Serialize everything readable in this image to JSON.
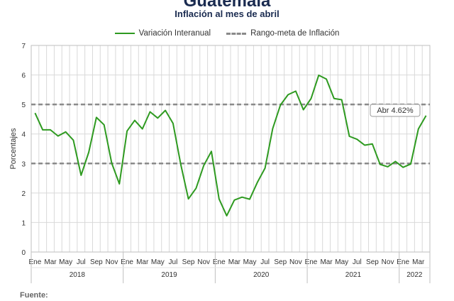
{
  "header": {
    "title": "Guatemala",
    "subtitle": "Inflación al mes de abril"
  },
  "footer": {
    "source_label": "Fuente:"
  },
  "colors": {
    "series": "#2e9a20",
    "target": "#8a8a8a",
    "grid": "#d9d9d9"
  },
  "chart_data": {
    "type": "line",
    "ylabel": "Porcentajes",
    "xlabel": "",
    "ylim": [
      0,
      7
    ],
    "yticks": [
      0,
      1,
      2,
      3,
      4,
      5,
      6,
      7
    ],
    "grid": true,
    "legend_position": "top",
    "x": [
      "Ene 2018",
      "Feb 2018",
      "Mar 2018",
      "Abr 2018",
      "May 2018",
      "Jun 2018",
      "Jul 2018",
      "Ago 2018",
      "Sep 2018",
      "Oct 2018",
      "Nov 2018",
      "Dic 2018",
      "Ene 2019",
      "Feb 2019",
      "Mar 2019",
      "Abr 2019",
      "May 2019",
      "Jun 2019",
      "Jul 2019",
      "Ago 2019",
      "Sep 2019",
      "Oct 2019",
      "Nov 2019",
      "Dic 2019",
      "Ene 2020",
      "Feb 2020",
      "Mar 2020",
      "Abr 2020",
      "May 2020",
      "Jun 2020",
      "Jul 2020",
      "Ago 2020",
      "Sep 2020",
      "Oct 2020",
      "Nov 2020",
      "Dic 2020",
      "Ene 2021",
      "Feb 2021",
      "Mar 2021",
      "Abr 2021",
      "May 2021",
      "Jun 2021",
      "Jul 2021",
      "Ago 2021",
      "Sep 2021",
      "Oct 2021",
      "Nov 2021",
      "Dic 2021",
      "Ene 2022",
      "Feb 2022",
      "Mar 2022",
      "Abr 2022"
    ],
    "tick_labels": [
      "Ene",
      "Mar",
      "May",
      "Jul",
      "Sep",
      "Nov",
      "Ene",
      "Mar",
      "May",
      "Jul",
      "Sep",
      "Nov",
      "Ene",
      "Mar",
      "May",
      "Jul",
      "Sep",
      "Nov",
      "Ene",
      "Mar",
      "May",
      "Jul",
      "Sep",
      "Nov",
      "Ene",
      "Mar"
    ],
    "years": [
      "2018",
      "2019",
      "2020",
      "2021",
      "2022"
    ],
    "series": [
      {
        "name": "Variación Interanual",
        "values": [
          4.71,
          4.14,
          4.14,
          3.93,
          4.07,
          3.79,
          2.6,
          3.38,
          4.56,
          4.31,
          3.01,
          2.31,
          4.1,
          4.46,
          4.17,
          4.75,
          4.54,
          4.8,
          4.36,
          2.97,
          1.8,
          2.16,
          2.93,
          3.41,
          1.8,
          1.23,
          1.76,
          1.86,
          1.79,
          2.36,
          2.84,
          4.18,
          4.98,
          5.33,
          5.45,
          4.82,
          5.2,
          5.99,
          5.86,
          5.2,
          5.16,
          3.92,
          3.82,
          3.62,
          3.66,
          2.97,
          2.89,
          3.07,
          2.87,
          2.98,
          4.17,
          4.62
        ]
      },
      {
        "name": "Rango-meta de Inflación",
        "upper": 5,
        "lower": 3
      }
    ],
    "annotations": [
      {
        "text": "Abr 4.62%",
        "x": "Abr 2022",
        "y": 4.62
      }
    ]
  }
}
